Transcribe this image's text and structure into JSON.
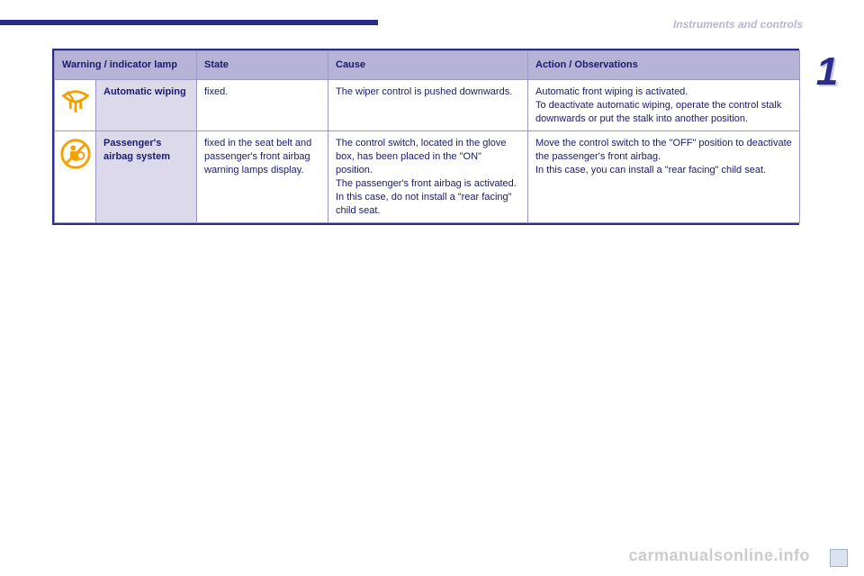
{
  "header": {
    "section_label": "Instruments and controls",
    "chapter": "1"
  },
  "palette": {
    "brand": "#2b2b8c",
    "header_bg": "#b7b3d6",
    "name_bg": "#dcd9ea",
    "border": "#9a9ac4",
    "icon_orange": "#f5a000",
    "text": "#1a1a6e"
  },
  "table": {
    "columns": {
      "lamp": "Warning / indicator lamp",
      "state": "State",
      "cause": "Cause",
      "action": "Action / Observations"
    },
    "rows": [
      {
        "icon": "auto-wiping-icon",
        "name": "Automatic wiping",
        "state": "fixed.",
        "cause": "The wiper control is pushed downwards.",
        "action": "Automatic front wiping is activated.\nTo deactivate automatic wiping, operate the control stalk downwards or put the stalk into another position."
      },
      {
        "icon": "airbag-off-icon",
        "name": "Passenger's airbag system",
        "state": "fixed in the seat belt and passenger's front airbag warning lamps display.",
        "cause": "The control switch, located in the glove box, has been placed in the \"ON\" position.\nThe passenger's front airbag is activated.\nIn this case, do not install a \"rear facing\" child seat.",
        "action": "Move the control switch to the \"OFF\" position to deactivate the passenger's front airbag.\nIn this case, you can install a \"rear facing\" child seat."
      }
    ]
  },
  "footer": {
    "watermark": "carmanualsonline.info",
    "pagehint": ""
  }
}
